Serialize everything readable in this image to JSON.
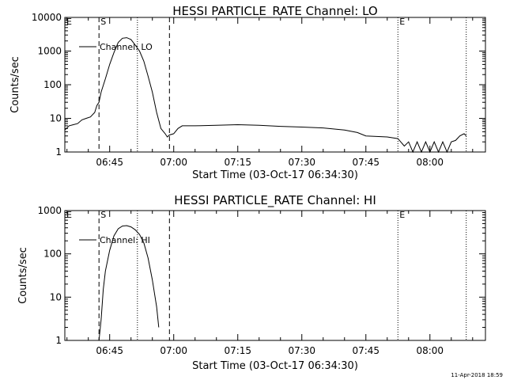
{
  "timestamp": "11-Apr-2018 18:59",
  "chart_data": [
    {
      "type": "line",
      "title": "HESSI PARTICLE_RATE Channel: LO",
      "xlabel": "Start Time (03-Oct-17 06:34:30)",
      "ylabel": "Counts/sec",
      "y_scale": "log",
      "xlim": [
        "06:34:30",
        "08:13:00"
      ],
      "ylim": [
        1,
        10000
      ],
      "xticks": [
        "06:45",
        "07:00",
        "07:15",
        "07:30",
        "07:45",
        "08:00"
      ],
      "yticks": [
        "1",
        "10",
        "100",
        "1000",
        "10000"
      ],
      "legend": {
        "position": "top-left",
        "entries": [
          "Channel: LO"
        ]
      },
      "markers": [
        {
          "label": "E",
          "time": "06:34:30",
          "style": "dotted"
        },
        {
          "label": "S",
          "time": "06:42:30",
          "style": "dashed"
        },
        {
          "label": "",
          "time": "06:51:30",
          "style": "dotted"
        },
        {
          "label": "",
          "time": "06:59:00",
          "style": "dashed"
        },
        {
          "label": "E",
          "time": "07:52:30",
          "style": "dotted"
        },
        {
          "label": "",
          "time": "08:08:30",
          "style": "dotted"
        }
      ],
      "series": [
        {
          "name": "Channel: LO",
          "points": [
            [
              "06:34:30",
              4.5
            ],
            [
              "06:35:30",
              6
            ],
            [
              "06:36:30",
              6.5
            ],
            [
              "06:37:30",
              7
            ],
            [
              "06:38:30",
              9
            ],
            [
              "06:39:30",
              10
            ],
            [
              "06:40:30",
              11
            ],
            [
              "06:41:30",
              15
            ],
            [
              "06:42:00",
              24
            ],
            [
              "06:42:30",
              30
            ],
            [
              "06:43:00",
              60
            ],
            [
              "06:44:00",
              150
            ],
            [
              "06:45:00",
              400
            ],
            [
              "06:46:00",
              900
            ],
            [
              "06:47:00",
              1800
            ],
            [
              "06:48:00",
              2400
            ],
            [
              "06:49:00",
              2500
            ],
            [
              "06:50:00",
              2200
            ],
            [
              "06:51:00",
              1500
            ],
            [
              "06:52:00",
              1000
            ],
            [
              "06:53:00",
              500
            ],
            [
              "06:54:00",
              180
            ],
            [
              "06:55:00",
              60
            ],
            [
              "06:56:00",
              15
            ],
            [
              "06:57:00",
              5
            ],
            [
              "06:58:00",
              3.5
            ],
            [
              "06:58:30",
              2.8
            ],
            [
              "06:59:00",
              3.2
            ],
            [
              "07:00:00",
              3.5
            ],
            [
              "07:01:00",
              5
            ],
            [
              "07:02:00",
              6
            ],
            [
              "07:05:00",
              6
            ],
            [
              "07:10:00",
              6.2
            ],
            [
              "07:15:00",
              6.5
            ],
            [
              "07:20:00",
              6.2
            ],
            [
              "07:25:00",
              5.8
            ],
            [
              "07:30:00",
              5.5
            ],
            [
              "07:35:00",
              5.2
            ],
            [
              "07:40:00",
              4.5
            ],
            [
              "07:43:00",
              3.8
            ],
            [
              "07:45:00",
              3
            ],
            [
              "07:50:00",
              2.8
            ],
            [
              "07:52:30",
              2.5
            ],
            [
              "07:54:00",
              1.5
            ],
            [
              "07:55:00",
              2
            ],
            [
              "07:56:00",
              1
            ],
            [
              "07:57:00",
              2
            ],
            [
              "07:58:00",
              1
            ],
            [
              "07:59:00",
              2
            ],
            [
              "08:00:00",
              1
            ],
            [
              "08:01:00",
              2
            ],
            [
              "08:02:00",
              1
            ],
            [
              "08:03:00",
              2
            ],
            [
              "08:04:00",
              1
            ],
            [
              "08:05:00",
              2
            ],
            [
              "08:06:00",
              2.2
            ],
            [
              "08:07:00",
              3
            ],
            [
              "08:08:00",
              3.5
            ],
            [
              "08:08:30",
              3
            ]
          ]
        }
      ]
    },
    {
      "type": "line",
      "title": "HESSI PARTICLE_RATE Channel: HI",
      "xlabel": "Start Time (03-Oct-17 06:34:30)",
      "ylabel": "Counts/sec",
      "y_scale": "log",
      "xlim": [
        "06:34:30",
        "08:13:00"
      ],
      "ylim": [
        1,
        1000
      ],
      "xticks": [
        "06:45",
        "07:00",
        "07:15",
        "07:30",
        "07:45",
        "08:00"
      ],
      "yticks": [
        "1",
        "10",
        "100",
        "1000"
      ],
      "legend": {
        "position": "top-left",
        "entries": [
          "Channel: HI"
        ]
      },
      "markers": [
        {
          "label": "E",
          "time": "06:34:30",
          "style": "dotted"
        },
        {
          "label": "S",
          "time": "06:42:30",
          "style": "dashed"
        },
        {
          "label": "",
          "time": "06:51:30",
          "style": "dotted"
        },
        {
          "label": "",
          "time": "06:59:00",
          "style": "dashed"
        },
        {
          "label": "E",
          "time": "07:52:30",
          "style": "dotted"
        },
        {
          "label": "",
          "time": "08:08:30",
          "style": "dotted"
        }
      ],
      "series": [
        {
          "name": "Channel: HI",
          "points": [
            [
              "06:42:30",
              1
            ],
            [
              "06:43:00",
              3
            ],
            [
              "06:43:30",
              15
            ],
            [
              "06:44:00",
              40
            ],
            [
              "06:45:00",
              120
            ],
            [
              "06:46:00",
              260
            ],
            [
              "06:47:00",
              380
            ],
            [
              "06:48:00",
              440
            ],
            [
              "06:49:00",
              450
            ],
            [
              "06:50:00",
              420
            ],
            [
              "06:51:00",
              360
            ],
            [
              "06:52:00",
              280
            ],
            [
              "06:53:00",
              180
            ],
            [
              "06:54:00",
              80
            ],
            [
              "06:55:00",
              25
            ],
            [
              "06:56:00",
              6
            ],
            [
              "06:56:30",
              2
            ]
          ]
        }
      ]
    }
  ]
}
